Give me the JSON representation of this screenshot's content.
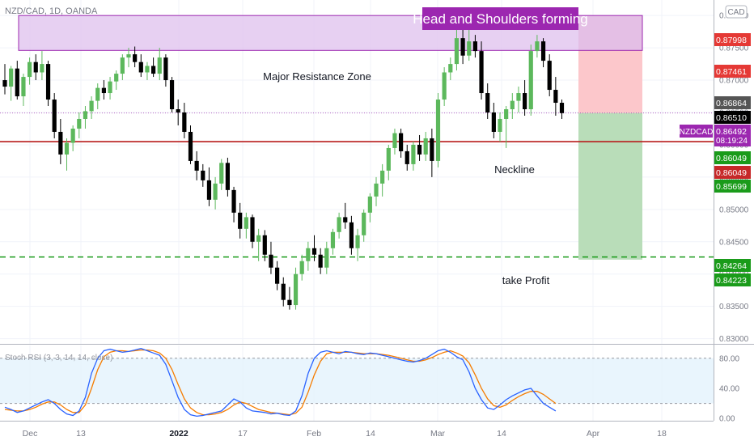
{
  "header": {
    "symbol_info": "NZD/CAD, 1D, OANDA",
    "currency_badge": "CAD"
  },
  "annotations": {
    "title_banner": "Head and Shoulders forming",
    "resistance_label": "Major Resistance Zone",
    "neckline_label": "Neckline",
    "take_profit_label": "take Profit"
  },
  "indicator": {
    "label": "Stoch RSI (3, 3, 14, 14, close)",
    "axis_ticks": [
      {
        "label": "80.00",
        "value": 80
      },
      {
        "label": "40.00",
        "value": 40
      },
      {
        "label": "0.00",
        "value": 0
      }
    ]
  },
  "colors": {
    "up_candle": "#5cb85c",
    "down_candle": "#000000",
    "resistance_fill": "#e1c4ef",
    "resistance_stroke": "#9c27b0",
    "neckline": "#b71c1c",
    "take_profit_line": "#1a9b1a",
    "stop_zone": "#fcc7cb",
    "stop_zone_dark": "#e8a0b8",
    "profit_zone": "#b9ddb9",
    "k_line": "#2962ff",
    "d_line": "#f57c00",
    "banner_bg": "#9c27b0"
  },
  "chart_data": [
    {
      "type": "candlestick",
      "symbol": "NZD/CAD",
      "timeframe": "1D",
      "x_ticks": [
        "Dec",
        "13",
        "2022",
        "17",
        "Feb",
        "14",
        "Mar",
        "14",
        "Apr",
        "18"
      ],
      "y_ticks": [
        "0.88000",
        "0.87500",
        "0.87000",
        "0.86500",
        "0.86000",
        "0.85500",
        "0.85000",
        "0.84500",
        "0.84000",
        "0.83500",
        "0.83000"
      ],
      "ylim": [
        0.8292,
        0.8824
      ],
      "price_labels": [
        {
          "text": "0.87998",
          "color": "#e53935",
          "value": 0.87998
        },
        {
          "text": "0.87461",
          "color": "#e53935",
          "value": 0.87461
        },
        {
          "text": "0.86864",
          "color": "#555555",
          "value": 0.86864
        },
        {
          "text": "0.86510",
          "color": "#000000",
          "value": 0.8651
        },
        {
          "text": "0.86492",
          "color": "#9c27b0",
          "value": 0.86492,
          "symbol": "NZDCAD",
          "countdown": "08:19:24"
        },
        {
          "text": "0.86049",
          "color": "#1a9b1a",
          "value": 0.86049
        },
        {
          "text": "0.86049",
          "color": "#c62828",
          "value": 0.86049
        },
        {
          "text": "0.85699",
          "color": "#1a9b1a",
          "value": 0.85699
        },
        {
          "text": "0.84264",
          "color": "#1a9b1a",
          "value": 0.84264
        },
        {
          "text": "0.84223",
          "color": "#1a9b1a",
          "value": 0.84223
        }
      ],
      "resistance_zone": [
        0.8746,
        0.88
      ],
      "neckline": 0.86049,
      "take_profit": 0.84264,
      "current_price": 0.86492,
      "position": {
        "entry": 0.86492,
        "stop": 0.87998,
        "target": 0.84223
      },
      "candles": [
        {
          "o": 0.87,
          "h": 0.8725,
          "l": 0.8678,
          "c": 0.869
        },
        {
          "o": 0.869,
          "h": 0.8722,
          "l": 0.8668,
          "c": 0.8718
        },
        {
          "o": 0.8718,
          "h": 0.873,
          "l": 0.867,
          "c": 0.8675
        },
        {
          "o": 0.8675,
          "h": 0.871,
          "l": 0.866,
          "c": 0.8705
        },
        {
          "o": 0.8705,
          "h": 0.8735,
          "l": 0.8693,
          "c": 0.8728
        },
        {
          "o": 0.8728,
          "h": 0.874,
          "l": 0.87,
          "c": 0.8712
        },
        {
          "o": 0.8712,
          "h": 0.8745,
          "l": 0.87,
          "c": 0.8725
        },
        {
          "o": 0.8725,
          "h": 0.873,
          "l": 0.866,
          "c": 0.867
        },
        {
          "o": 0.867,
          "h": 0.868,
          "l": 0.861,
          "c": 0.862
        },
        {
          "o": 0.862,
          "h": 0.864,
          "l": 0.857,
          "c": 0.8585
        },
        {
          "o": 0.8585,
          "h": 0.861,
          "l": 0.856,
          "c": 0.8603
        },
        {
          "o": 0.8603,
          "h": 0.863,
          "l": 0.859,
          "c": 0.8625
        },
        {
          "o": 0.8625,
          "h": 0.865,
          "l": 0.861,
          "c": 0.864
        },
        {
          "o": 0.864,
          "h": 0.866,
          "l": 0.8625,
          "c": 0.8652
        },
        {
          "o": 0.8652,
          "h": 0.8675,
          "l": 0.864,
          "c": 0.8668
        },
        {
          "o": 0.8668,
          "h": 0.8695,
          "l": 0.8655,
          "c": 0.8688
        },
        {
          "o": 0.8688,
          "h": 0.87,
          "l": 0.867,
          "c": 0.868
        },
        {
          "o": 0.868,
          "h": 0.8705,
          "l": 0.867,
          "c": 0.8698
        },
        {
          "o": 0.8698,
          "h": 0.8715,
          "l": 0.8685,
          "c": 0.871
        },
        {
          "o": 0.871,
          "h": 0.874,
          "l": 0.87,
          "c": 0.8735
        },
        {
          "o": 0.8735,
          "h": 0.875,
          "l": 0.872,
          "c": 0.874
        },
        {
          "o": 0.874,
          "h": 0.8752,
          "l": 0.872,
          "c": 0.8728
        },
        {
          "o": 0.8728,
          "h": 0.874,
          "l": 0.8705,
          "c": 0.8712
        },
        {
          "o": 0.8712,
          "h": 0.8728,
          "l": 0.87,
          "c": 0.8722
        },
        {
          "o": 0.8722,
          "h": 0.8735,
          "l": 0.8705,
          "c": 0.871
        },
        {
          "o": 0.871,
          "h": 0.875,
          "l": 0.87,
          "c": 0.8735
        },
        {
          "o": 0.8735,
          "h": 0.874,
          "l": 0.869,
          "c": 0.87
        },
        {
          "o": 0.87,
          "h": 0.8705,
          "l": 0.865,
          "c": 0.8655
        },
        {
          "o": 0.8655,
          "h": 0.867,
          "l": 0.863,
          "c": 0.865
        },
        {
          "o": 0.865,
          "h": 0.8665,
          "l": 0.861,
          "c": 0.862
        },
        {
          "o": 0.862,
          "h": 0.863,
          "l": 0.857,
          "c": 0.8575
        },
        {
          "o": 0.8575,
          "h": 0.859,
          "l": 0.8545,
          "c": 0.856
        },
        {
          "o": 0.856,
          "h": 0.857,
          "l": 0.8535,
          "c": 0.8545
        },
        {
          "o": 0.8545,
          "h": 0.8565,
          "l": 0.8505,
          "c": 0.8515
        },
        {
          "o": 0.8515,
          "h": 0.855,
          "l": 0.85,
          "c": 0.854
        },
        {
          "o": 0.854,
          "h": 0.8578,
          "l": 0.853,
          "c": 0.8572
        },
        {
          "o": 0.8572,
          "h": 0.858,
          "l": 0.852,
          "c": 0.853
        },
        {
          "o": 0.853,
          "h": 0.8535,
          "l": 0.848,
          "c": 0.8495
        },
        {
          "o": 0.8495,
          "h": 0.851,
          "l": 0.8455,
          "c": 0.847
        },
        {
          "o": 0.847,
          "h": 0.8495,
          "l": 0.8455,
          "c": 0.8488
        },
        {
          "o": 0.8488,
          "h": 0.8492,
          "l": 0.844,
          "c": 0.845
        },
        {
          "o": 0.845,
          "h": 0.847,
          "l": 0.842,
          "c": 0.846
        },
        {
          "o": 0.846,
          "h": 0.8468,
          "l": 0.842,
          "c": 0.843
        },
        {
          "o": 0.843,
          "h": 0.845,
          "l": 0.84,
          "c": 0.841
        },
        {
          "o": 0.841,
          "h": 0.842,
          "l": 0.8375,
          "c": 0.8385
        },
        {
          "o": 0.8385,
          "h": 0.8395,
          "l": 0.835,
          "c": 0.836
        },
        {
          "o": 0.836,
          "h": 0.838,
          "l": 0.8345,
          "c": 0.8352
        },
        {
          "o": 0.8352,
          "h": 0.841,
          "l": 0.8345,
          "c": 0.84
        },
        {
          "o": 0.84,
          "h": 0.843,
          "l": 0.839,
          "c": 0.842
        },
        {
          "o": 0.842,
          "h": 0.845,
          "l": 0.8405,
          "c": 0.844
        },
        {
          "o": 0.844,
          "h": 0.846,
          "l": 0.842,
          "c": 0.843
        },
        {
          "o": 0.843,
          "h": 0.844,
          "l": 0.84,
          "c": 0.841
        },
        {
          "o": 0.841,
          "h": 0.845,
          "l": 0.84,
          "c": 0.844
        },
        {
          "o": 0.844,
          "h": 0.847,
          "l": 0.843,
          "c": 0.8465
        },
        {
          "o": 0.8465,
          "h": 0.8495,
          "l": 0.8455,
          "c": 0.8488
        },
        {
          "o": 0.8488,
          "h": 0.851,
          "l": 0.847,
          "c": 0.848
        },
        {
          "o": 0.848,
          "h": 0.849,
          "l": 0.843,
          "c": 0.844
        },
        {
          "o": 0.844,
          "h": 0.847,
          "l": 0.842,
          "c": 0.846
        },
        {
          "o": 0.846,
          "h": 0.85,
          "l": 0.845,
          "c": 0.8495
        },
        {
          "o": 0.8495,
          "h": 0.8525,
          "l": 0.848,
          "c": 0.852
        },
        {
          "o": 0.852,
          "h": 0.855,
          "l": 0.8505,
          "c": 0.854
        },
        {
          "o": 0.854,
          "h": 0.857,
          "l": 0.852,
          "c": 0.856
        },
        {
          "o": 0.856,
          "h": 0.86,
          "l": 0.8545,
          "c": 0.8595
        },
        {
          "o": 0.8595,
          "h": 0.8625,
          "l": 0.8585,
          "c": 0.8618
        },
        {
          "o": 0.8618,
          "h": 0.8625,
          "l": 0.858,
          "c": 0.859
        },
        {
          "o": 0.859,
          "h": 0.86,
          "l": 0.856,
          "c": 0.857
        },
        {
          "o": 0.857,
          "h": 0.8605,
          "l": 0.856,
          "c": 0.86
        },
        {
          "o": 0.86,
          "h": 0.8615,
          "l": 0.8575,
          "c": 0.8585
        },
        {
          "o": 0.8585,
          "h": 0.862,
          "l": 0.8575,
          "c": 0.861
        },
        {
          "o": 0.861,
          "h": 0.8625,
          "l": 0.855,
          "c": 0.8575
        },
        {
          "o": 0.8575,
          "h": 0.868,
          "l": 0.8565,
          "c": 0.867
        },
        {
          "o": 0.867,
          "h": 0.872,
          "l": 0.866,
          "c": 0.8712
        },
        {
          "o": 0.8712,
          "h": 0.8735,
          "l": 0.87,
          "c": 0.8725
        },
        {
          "o": 0.8725,
          "h": 0.8805,
          "l": 0.8715,
          "c": 0.8765
        },
        {
          "o": 0.8765,
          "h": 0.879,
          "l": 0.8725,
          "c": 0.8738
        },
        {
          "o": 0.8738,
          "h": 0.8788,
          "l": 0.873,
          "c": 0.876
        },
        {
          "o": 0.876,
          "h": 0.877,
          "l": 0.8735,
          "c": 0.8745
        },
        {
          "o": 0.8745,
          "h": 0.876,
          "l": 0.867,
          "c": 0.868
        },
        {
          "o": 0.868,
          "h": 0.8695,
          "l": 0.864,
          "c": 0.865
        },
        {
          "o": 0.865,
          "h": 0.8665,
          "l": 0.861,
          "c": 0.862
        },
        {
          "o": 0.862,
          "h": 0.865,
          "l": 0.8605,
          "c": 0.864
        },
        {
          "o": 0.864,
          "h": 0.866,
          "l": 0.8595,
          "c": 0.8655
        },
        {
          "o": 0.8655,
          "h": 0.868,
          "l": 0.864,
          "c": 0.8668
        },
        {
          "o": 0.8668,
          "h": 0.869,
          "l": 0.865,
          "c": 0.868
        },
        {
          "o": 0.868,
          "h": 0.87,
          "l": 0.8645,
          "c": 0.8655
        },
        {
          "o": 0.8655,
          "h": 0.8755,
          "l": 0.8645,
          "c": 0.8745
        },
        {
          "o": 0.8745,
          "h": 0.877,
          "l": 0.8735,
          "c": 0.876
        },
        {
          "o": 0.876,
          "h": 0.8765,
          "l": 0.872,
          "c": 0.873
        },
        {
          "o": 0.873,
          "h": 0.874,
          "l": 0.8675,
          "c": 0.8685
        },
        {
          "o": 0.8685,
          "h": 0.8705,
          "l": 0.8645,
          "c": 0.8665
        },
        {
          "o": 0.8665,
          "h": 0.867,
          "l": 0.864,
          "c": 0.8649
        }
      ]
    },
    {
      "type": "line",
      "title": "Stoch RSI (3, 3, 14, 14, close)",
      "ylim": [
        -3,
        97
      ],
      "band": [
        20,
        80
      ],
      "series": [
        {
          "name": "K",
          "color": "#2962ff",
          "values": [
            15,
            12,
            8,
            10,
            14,
            18,
            22,
            25,
            20,
            12,
            6,
            4,
            10,
            28,
            60,
            80,
            90,
            92,
            90,
            88,
            89,
            91,
            93,
            90,
            87,
            84,
            72,
            50,
            28,
            12,
            5,
            3,
            4,
            6,
            8,
            10,
            18,
            26,
            22,
            14,
            10,
            9,
            8,
            6,
            7,
            5,
            4,
            10,
            30,
            60,
            80,
            88,
            90,
            88,
            86,
            89,
            88,
            86,
            85,
            87,
            86,
            84,
            82,
            80,
            78,
            76,
            75,
            77,
            80,
            85,
            90,
            92,
            88,
            82,
            78,
            62,
            40,
            25,
            14,
            12,
            18,
            25,
            30,
            34,
            38,
            40,
            30,
            20,
            15,
            10
          ]
        },
        {
          "name": "D",
          "color": "#f57c00",
          "values": [
            12,
            11,
            10,
            10,
            12,
            15,
            19,
            22,
            22,
            18,
            12,
            8,
            8,
            18,
            40,
            65,
            82,
            88,
            90,
            90,
            89,
            90,
            91,
            91,
            90,
            87,
            80,
            65,
            45,
            26,
            14,
            8,
            5,
            5,
            6,
            8,
            12,
            18,
            22,
            20,
            16,
            12,
            10,
            8,
            7,
            6,
            5,
            7,
            15,
            35,
            58,
            76,
            86,
            88,
            88,
            88,
            88,
            87,
            86,
            86,
            86,
            85,
            84,
            82,
            80,
            78,
            76,
            76,
            78,
            81,
            85,
            88,
            90,
            87,
            83,
            74,
            58,
            40,
            26,
            17,
            15,
            18,
            24,
            29,
            33,
            36,
            36,
            32,
            26,
            20
          ]
        }
      ]
    }
  ]
}
